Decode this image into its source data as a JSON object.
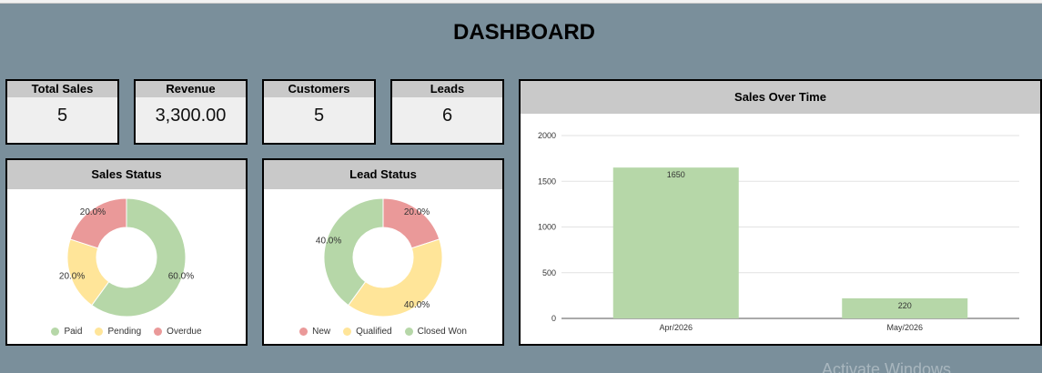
{
  "header": {
    "title": "DASHBOARD"
  },
  "kpis": [
    {
      "label": "Total Sales",
      "value": "5"
    },
    {
      "label": "Revenue",
      "value": "3,300.00"
    },
    {
      "label": "Customers",
      "value": "5"
    },
    {
      "label": "Leads",
      "value": "6"
    }
  ],
  "colors": {
    "green": "#b6d7a8",
    "yellow": "#ffe599",
    "red": "#ea9999",
    "panel_head": "#c9c9c9",
    "background": "#7a8f9b"
  },
  "sales_status": {
    "title": "Sales Status",
    "legend": [
      "Paid",
      "Pending",
      "Overdue"
    ]
  },
  "lead_status": {
    "title": "Lead Status",
    "legend": [
      "New",
      "Qualified",
      "Closed Won"
    ]
  },
  "sales_over_time": {
    "title": "Sales Over Time"
  },
  "watermark": "Activate Windows",
  "chart_data": [
    {
      "type": "pie",
      "title": "Sales Status",
      "categories": [
        "Paid",
        "Pending",
        "Overdue"
      ],
      "values": [
        60.0,
        20.0,
        20.0
      ],
      "labels": [
        "60.0%",
        "20.0%",
        "20.0%"
      ],
      "colors": [
        "#b6d7a8",
        "#ffe599",
        "#ea9999"
      ],
      "legend": "bottom"
    },
    {
      "type": "pie",
      "title": "Lead Status",
      "categories": [
        "New",
        "Qualified",
        "Closed Won"
      ],
      "values": [
        20.0,
        40.0,
        40.0
      ],
      "labels": [
        "20.0%",
        "40.0%",
        "40.0%"
      ],
      "colors": [
        "#ea9999",
        "#ffe599",
        "#b6d7a8"
      ],
      "legend": "bottom"
    },
    {
      "type": "bar",
      "title": "Sales Over Time",
      "categories": [
        "Apr/2026",
        "May/2026"
      ],
      "values": [
        1650,
        220
      ],
      "ylim": [
        0,
        2000
      ],
      "yticks": [
        "0",
        "500",
        "1000",
        "1500",
        "2000"
      ],
      "color": "#b6d7a8",
      "grid": true
    }
  ]
}
